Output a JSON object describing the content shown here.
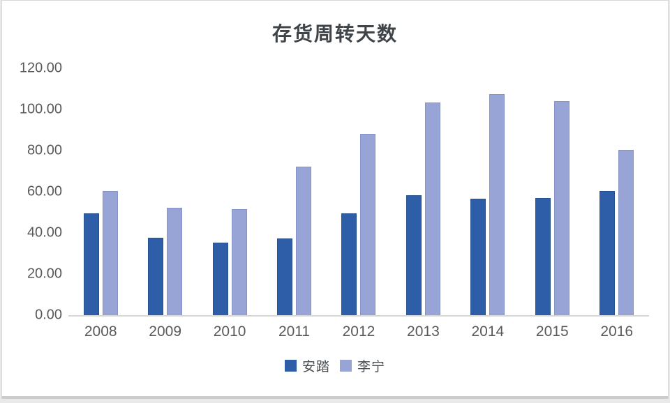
{
  "chart_data": {
    "type": "bar",
    "title": "存货周转天数",
    "categories": [
      "2008",
      "2009",
      "2010",
      "2011",
      "2012",
      "2013",
      "2014",
      "2015",
      "2016"
    ],
    "series": [
      {
        "name": "安踏",
        "color": "#2f5ea8",
        "values": [
          49.5,
          37.5,
          35.3,
          37.3,
          49.4,
          58.2,
          56.7,
          57.0,
          60.3
        ]
      },
      {
        "name": "李宁",
        "color": "#98a4d6",
        "values": [
          60.2,
          52.2,
          51.4,
          72.3,
          88.0,
          103.5,
          107.5,
          104.2,
          80.2
        ]
      }
    ],
    "xlabel": "",
    "ylabel": "",
    "ylim": [
      0,
      120
    ],
    "ytick_step": 20,
    "ytick_labels": [
      "0.00",
      "20.00",
      "40.00",
      "60.00",
      "80.00",
      "100.00",
      "120.00"
    ],
    "grid": "off",
    "legend_position": "bottom"
  },
  "colors": {
    "title_text": "#3f4449",
    "axis_text": "#595959",
    "axis_line": "#d6d6d6",
    "card_background": "#ffffff",
    "card_border": "#d7d7d7"
  }
}
